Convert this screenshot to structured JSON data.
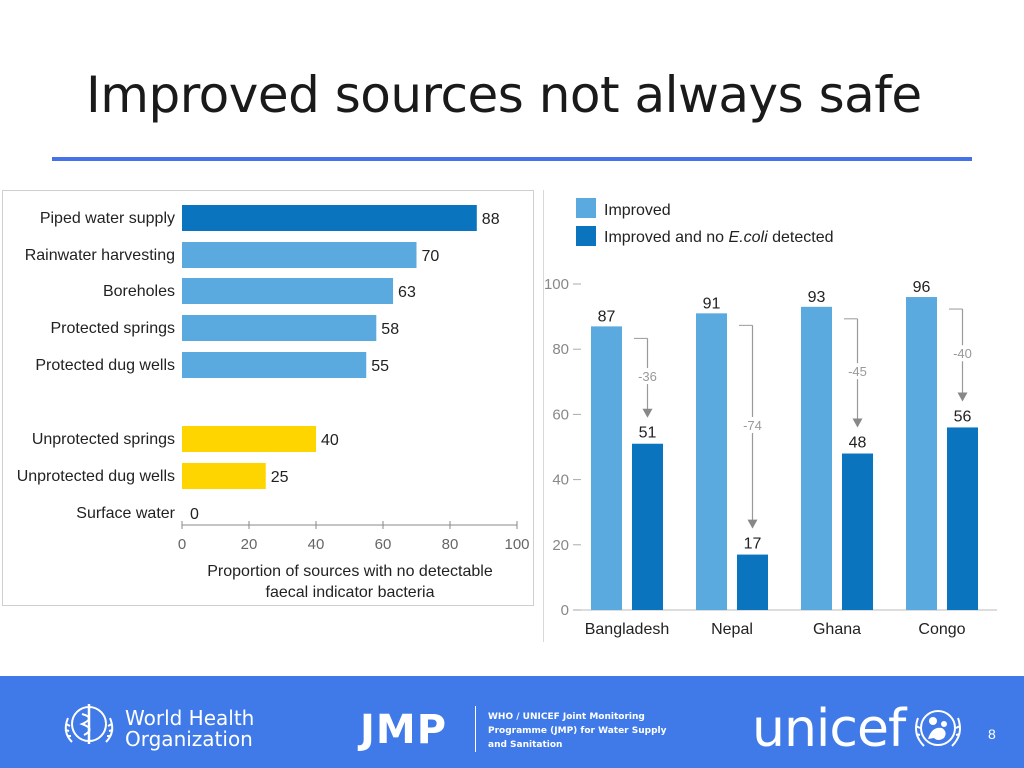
{
  "slide": {
    "title": "Improved sources not always safe",
    "page_number": "8"
  },
  "colors": {
    "accent_rule": "#4472e8",
    "improved_light": "#5aa9df",
    "improved_dark": "#0b74bf",
    "unprotected": "#ffd500",
    "footer": "#3f7ae8"
  },
  "chart_data": [
    {
      "type": "bar",
      "orientation": "horizontal",
      "categories": [
        "Piped water supply",
        "Rainwater harvesting",
        "Boreholes",
        "Protected springs",
        "Protected dug wells",
        "Unprotected springs",
        "Unprotected dug wells",
        "Surface water"
      ],
      "values": [
        88,
        70,
        63,
        58,
        55,
        40,
        25,
        0
      ],
      "value_labels": [
        "88",
        "70",
        "63",
        "58",
        "55",
        "40",
        "25",
        "0"
      ],
      "groups": [
        "improved-top",
        "improved",
        "improved",
        "improved",
        "improved",
        "unprotected",
        "unprotected",
        "unprotected"
      ],
      "xlim": [
        0,
        100
      ],
      "xticks": [
        "0",
        "20",
        "40",
        "60",
        "80",
        "100"
      ],
      "xlabel_line1": "Proportion of sources with no detectable",
      "xlabel_line2": "faecal indicator bacteria"
    },
    {
      "type": "bar",
      "orientation": "vertical",
      "categories": [
        "Bangladesh",
        "Nepal",
        "Ghana",
        "Congo"
      ],
      "series": [
        {
          "name": "Improved",
          "values": [
            87,
            91,
            93,
            96
          ]
        },
        {
          "name": "Improved and no E.coli detected",
          "values": [
            51,
            17,
            48,
            56
          ]
        }
      ],
      "legend": [
        {
          "label_plain": "Improved and no ",
          "label_italic": "E.coli",
          "label_tail": " detected"
        }
      ],
      "value_labels_improved": [
        "87",
        "91",
        "93",
        "96"
      ],
      "value_labels_safe": [
        "51",
        "17",
        "48",
        "56"
      ],
      "differences": [
        -36,
        -74,
        -45,
        -40
      ],
      "difference_labels": [
        "-36",
        "-74",
        "-45",
        "-40"
      ],
      "ylim": [
        0,
        100
      ],
      "yticks": [
        "0",
        "20",
        "40",
        "60",
        "80",
        "100"
      ]
    }
  ],
  "footer": {
    "who_line1": "World Health",
    "who_line2": "Organization",
    "jmp": "JMP",
    "jmp_line1": "WHO / UNICEF Joint Monitoring",
    "jmp_line2": "Programme (JMP) for Water Supply",
    "jmp_line3": "and Sanitation",
    "unicef": "unicef"
  }
}
